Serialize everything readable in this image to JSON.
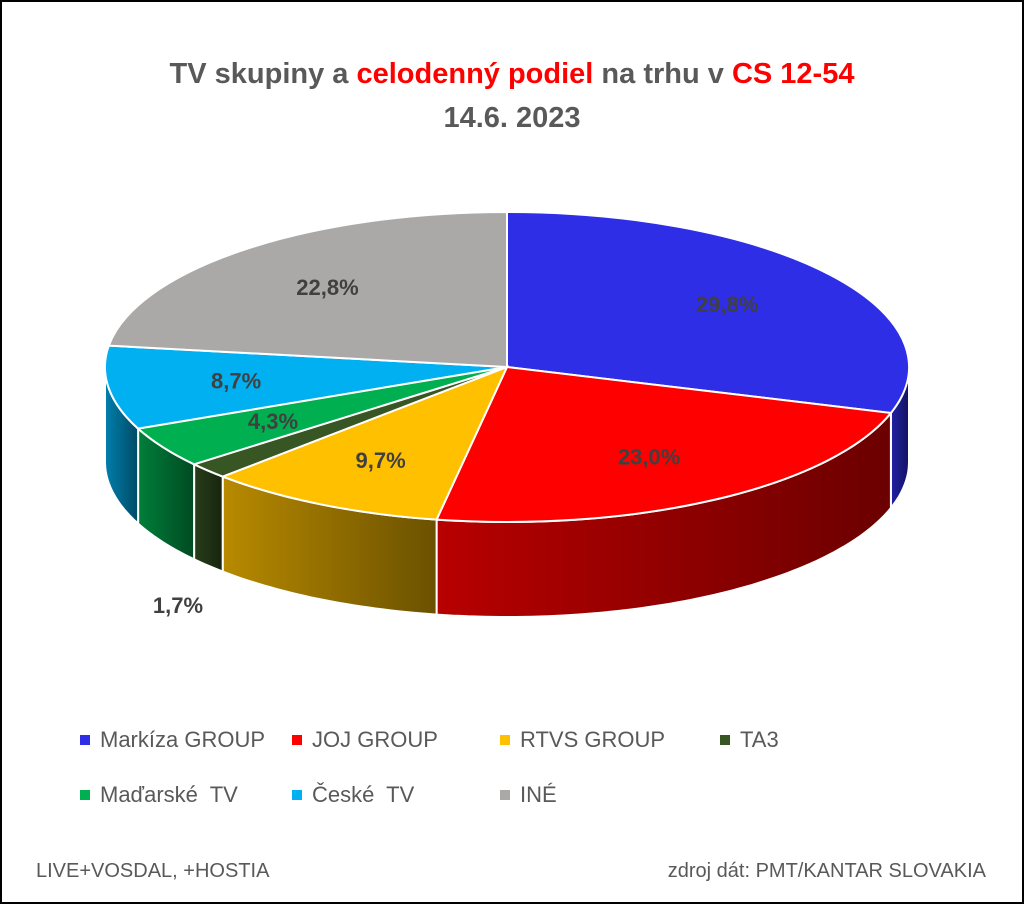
{
  "title": {
    "part1": "TV skupiny a ",
    "part2": "celodenný podiel",
    "part3": " na trhu v ",
    "part4": "CS 12-54",
    "line2": "14.6. 2023",
    "highlight_color": "#ff0000"
  },
  "chart_data": {
    "type": "pie",
    "style": "3d",
    "categories": [
      "Markíza GROUP",
      "JOJ GROUP",
      "RTVS GROUP",
      "TA3",
      "Maďarské  TV",
      "České  TV",
      "INÉ"
    ],
    "values": [
      29.8,
      23.0,
      9.7,
      1.7,
      4.3,
      8.7,
      22.8
    ],
    "labels": [
      "29,8%",
      "23,0%",
      "9,7%",
      "1,7%",
      "4,3%",
      "8,7%",
      "22,8%"
    ],
    "colors": [
      "#2e2ee6",
      "#ff0000",
      "#ffc000",
      "#375623",
      "#00b050",
      "#00b0f0",
      "#aba8a8"
    ],
    "legend_position": "bottom"
  },
  "footer": {
    "left": "LIVE+VOSDAL,  +HOSTIA",
    "right": "zdroj dát: PMT/KANTAR SLOVAKIA"
  }
}
